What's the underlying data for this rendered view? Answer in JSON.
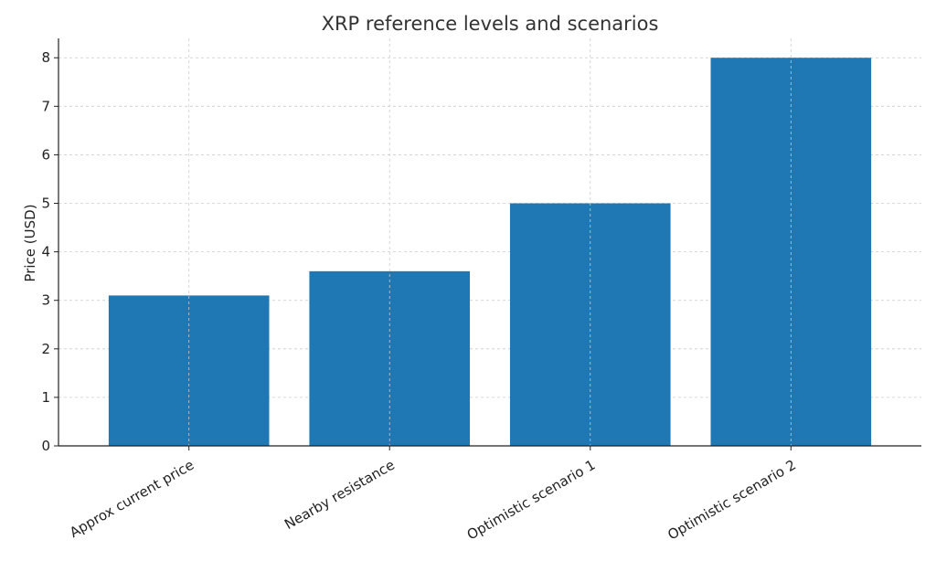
{
  "chart_data": {
    "type": "bar",
    "title": "XRP reference levels and scenarios",
    "xlabel": "",
    "ylabel": "Price (USD)",
    "categories": [
      "Approx current price",
      "Nearby resistance",
      "Optimistic scenario 1",
      "Optimistic scenario 2"
    ],
    "values": [
      3.1,
      3.6,
      5.0,
      8.0
    ],
    "ylim": [
      0,
      8.4
    ],
    "yticks": [
      "0",
      "1",
      "2",
      "3",
      "4",
      "5",
      "6",
      "7",
      "8"
    ],
    "grid": true,
    "legend": "none",
    "colors": {
      "bar": "#1f77b4"
    }
  }
}
